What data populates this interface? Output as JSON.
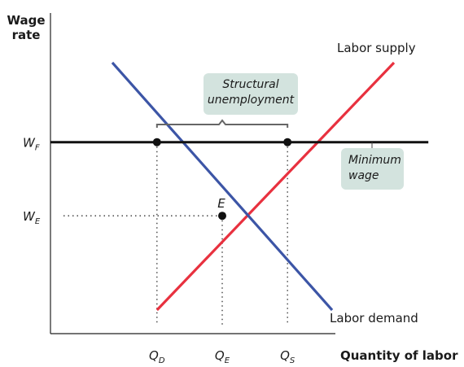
{
  "chart_data": {
    "type": "line",
    "title": "",
    "ylabel": [
      "Wage",
      "rate"
    ],
    "xlabel": "Quantity of labor",
    "xlim": [
      0,
      10
    ],
    "ylim": [
      0,
      10
    ],
    "series": [
      {
        "name": "Labor supply",
        "color": "#e8313f",
        "x": [
          3.1,
          10.0
        ],
        "y": [
          0.8,
          9.2
        ]
      },
      {
        "name": "Labor demand",
        "color": "#3c55a6",
        "x": [
          1.8,
          8.2
        ],
        "y": [
          9.2,
          0.8
        ]
      },
      {
        "name": "Minimum wage",
        "color": "#111111",
        "x": [
          0.0,
          11.0
        ],
        "y": [
          6.5,
          6.5
        ]
      }
    ],
    "points": [
      {
        "label": "E",
        "x": 5.0,
        "y": 4.0
      },
      {
        "label": "",
        "x": 3.1,
        "y": 6.5
      },
      {
        "label": "",
        "x": 6.9,
        "y": 6.5
      }
    ],
    "x_ticks": [
      {
        "main": "Q",
        "sub": "D",
        "value": 3.1
      },
      {
        "main": "Q",
        "sub": "E",
        "value": 5.0
      },
      {
        "main": "Q",
        "sub": "S",
        "value": 6.9
      }
    ],
    "y_ticks": [
      {
        "main": "W",
        "sub": "F",
        "value": 6.5
      },
      {
        "main": "W",
        "sub": "E",
        "value": 4.0
      }
    ],
    "annotations": {
      "structural": [
        "Structural",
        "unemployment"
      ],
      "minimum_wage": [
        "Minimum",
        "wage"
      ]
    },
    "box_color": "#d3e3de",
    "grid": false,
    "legend": "none"
  }
}
